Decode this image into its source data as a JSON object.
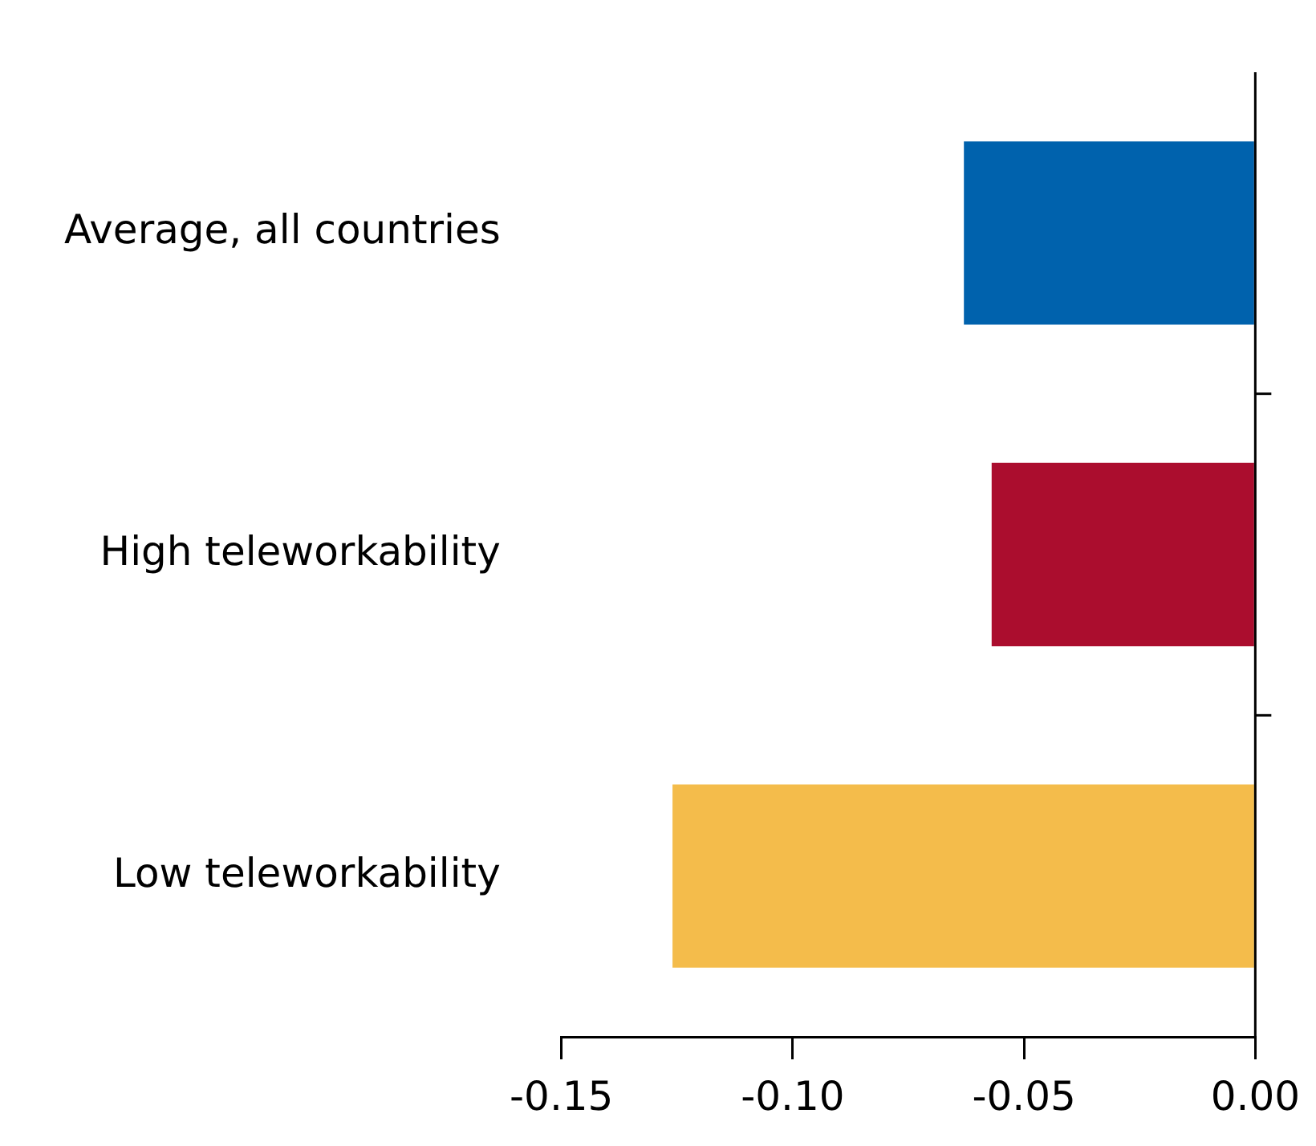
{
  "chart_data": {
    "type": "bar",
    "orientation": "horizontal",
    "categories": [
      "Average, all countries",
      "High teleworkability",
      "Low teleworkability"
    ],
    "values": [
      -0.063,
      -0.057,
      -0.126
    ],
    "colors": [
      "#0062ad",
      "#ab0d2e",
      "#f4bc4b"
    ],
    "xlim": [
      -0.15,
      0
    ],
    "xticks": [
      {
        "value": -0.15,
        "label": "-0.15"
      },
      {
        "value": -0.1,
        "label": "-0.10"
      },
      {
        "value": -0.05,
        "label": "-0.05"
      },
      {
        "value": 0,
        "label": "0.00"
      }
    ],
    "grid": false,
    "legend": false
  }
}
